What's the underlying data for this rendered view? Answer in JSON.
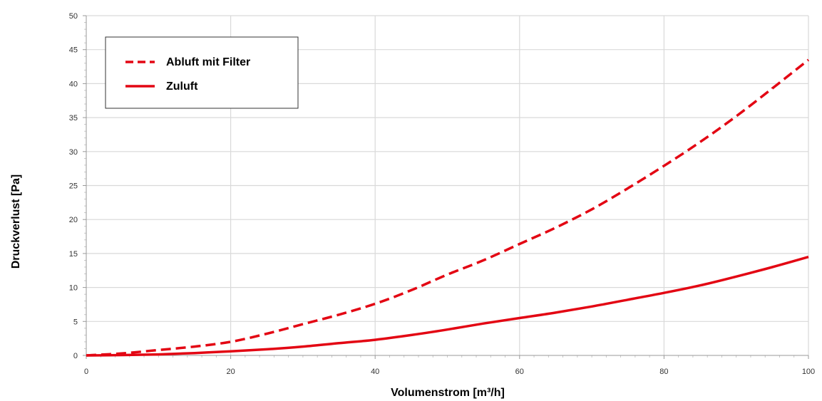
{
  "chart_data": {
    "type": "line",
    "xlabel": "Volumenstrom [m³/h]",
    "ylabel": "Druckverlust [Pa]",
    "xlim": [
      0,
      100
    ],
    "ylim": [
      0,
      50
    ],
    "x_ticks": [
      0,
      20,
      40,
      60,
      80,
      100
    ],
    "y_ticks": [
      0,
      5,
      10,
      15,
      20,
      25,
      30,
      35,
      40,
      45,
      50
    ],
    "grid": true,
    "legend_position": "top-left",
    "series": [
      {
        "name": "Abluft mit Filter",
        "style": "dashed",
        "color": "#e30613",
        "x": [
          0,
          5,
          10,
          15,
          20,
          25,
          30,
          35,
          40,
          45,
          50,
          55,
          60,
          65,
          70,
          75,
          80,
          85,
          90,
          95,
          100
        ],
        "y": [
          0,
          0.3,
          0.8,
          1.3,
          2.0,
          3.2,
          4.6,
          6.0,
          7.6,
          9.6,
          11.9,
          14.0,
          16.4,
          18.8,
          21.5,
          24.6,
          27.9,
          31.4,
          35.2,
          39.3,
          43.5
        ]
      },
      {
        "name": "Zuluft",
        "style": "solid",
        "color": "#e30613",
        "x": [
          0,
          5,
          10,
          15,
          20,
          25,
          30,
          35,
          40,
          45,
          50,
          55,
          60,
          65,
          70,
          75,
          80,
          85,
          90,
          95,
          100
        ],
        "y": [
          0,
          0.05,
          0.15,
          0.35,
          0.6,
          0.9,
          1.3,
          1.8,
          2.3,
          3.0,
          3.8,
          4.7,
          5.5,
          6.3,
          7.2,
          8.2,
          9.2,
          10.3,
          11.6,
          13.0,
          14.5
        ]
      }
    ]
  }
}
